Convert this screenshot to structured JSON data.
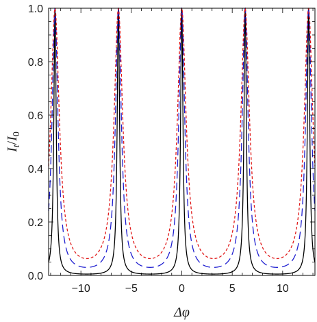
{
  "chart_data": {
    "type": "line",
    "title": "",
    "xlabel": "Δφ",
    "ylabel_parts": [
      "I",
      "t",
      "/",
      "I",
      "0"
    ],
    "xlim": [
      -13.2,
      13.2
    ],
    "ylim": [
      0,
      1.0
    ],
    "x_ticks": [
      -10,
      -5,
      0,
      5,
      10
    ],
    "x_tick_labels": [
      "−10",
      "−5",
      "0",
      "5",
      "10"
    ],
    "y_ticks": [
      0.0,
      0.2,
      0.4,
      0.6,
      0.8,
      1.0
    ],
    "y_tick_labels": [
      "0.0",
      "0.2",
      "0.4",
      "0.6",
      "0.8",
      "1.0"
    ],
    "grid": false,
    "legend": "none",
    "series": [
      {
        "style": "solid",
        "color": "#000000",
        "peak_positions": [
          -12.566,
          -6.283,
          0,
          6.283,
          12.566
        ],
        "peak_value": 1.0,
        "minimum_value": 0.005
      },
      {
        "style": "long-dash",
        "color": "#1f1fd0",
        "peak_positions": [
          -12.566,
          -6.283,
          0,
          6.283,
          12.566
        ],
        "peak_value": 1.0,
        "minimum_value": 0.03
      },
      {
        "style": "short-dash",
        "color": "#e01818",
        "peak_positions": [
          -12.566,
          -6.283,
          0,
          6.283,
          12.566
        ],
        "peak_value": 1.0,
        "minimum_value": 0.063
      }
    ]
  }
}
